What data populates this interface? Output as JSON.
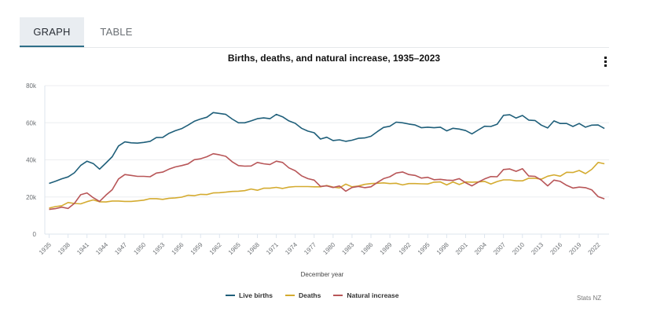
{
  "tabs": [
    {
      "label": "GRAPH",
      "active": true
    },
    {
      "label": "TABLE",
      "active": false
    }
  ],
  "menu_icon": "more-vertical-icon",
  "source": "Stats NZ",
  "chart_data": {
    "type": "line",
    "title": "Births, deaths, and natural increase, 1935–2023",
    "xlabel": "December year",
    "ylabel": "",
    "ylim": [
      0,
      80000
    ],
    "yticks": [
      0,
      20000,
      40000,
      60000,
      80000
    ],
    "ytick_labels": [
      "0",
      "20k",
      "40k",
      "60k",
      "80k"
    ],
    "xlim": [
      1935,
      2023
    ],
    "xticks": [
      1935,
      1938,
      1941,
      1944,
      1947,
      1950,
      1953,
      1956,
      1959,
      1962,
      1965,
      1968,
      1971,
      1974,
      1977,
      1980,
      1983,
      1986,
      1989,
      1992,
      1995,
      1998,
      2001,
      2004,
      2007,
      2010,
      2013,
      2016,
      2019,
      2022
    ],
    "xtick_labels": [
      "1935",
      "1938",
      "1941",
      "1944",
      "1947",
      "1950",
      "1953",
      "1956",
      "1959",
      "1962",
      "1965",
      "1968",
      "1971",
      "1974",
      "1977",
      "1980",
      "1983",
      "1986",
      "1989",
      "1992",
      "1995",
      "1998",
      "2001",
      "2004",
      "2007",
      "2010",
      "2013",
      "2016",
      "2019",
      "2022"
    ],
    "grid": true,
    "legend_position": "bottom",
    "x": [
      1935,
      1936,
      1937,
      1938,
      1939,
      1940,
      1941,
      1942,
      1943,
      1944,
      1945,
      1946,
      1947,
      1948,
      1949,
      1950,
      1951,
      1952,
      1953,
      1954,
      1955,
      1956,
      1957,
      1958,
      1959,
      1960,
      1961,
      1962,
      1963,
      1964,
      1965,
      1966,
      1967,
      1968,
      1969,
      1970,
      1971,
      1972,
      1973,
      1974,
      1975,
      1976,
      1977,
      1978,
      1979,
      1980,
      1981,
      1982,
      1983,
      1984,
      1985,
      1986,
      1987,
      1988,
      1989,
      1990,
      1991,
      1992,
      1993,
      1994,
      1995,
      1996,
      1997,
      1998,
      1999,
      2000,
      2001,
      2002,
      2003,
      2004,
      2005,
      2006,
      2007,
      2008,
      2009,
      2010,
      2011,
      2012,
      2013,
      2014,
      2015,
      2016,
      2017,
      2018,
      2019,
      2020,
      2021,
      2022,
      2023
    ],
    "series": [
      {
        "name": "Live births",
        "color": "#1f5f7a",
        "values": [
          27300,
          28500,
          29800,
          30800,
          33000,
          37000,
          39300,
          38000,
          35000,
          38300,
          41700,
          47500,
          49700,
          49200,
          49000,
          49400,
          50000,
          52000,
          52100,
          54300,
          55700,
          56800,
          58700,
          60800,
          62000,
          63000,
          65500,
          65000,
          64500,
          62000,
          60000,
          60000,
          61000,
          62200,
          62600,
          62200,
          64500,
          63200,
          61000,
          59700,
          57000,
          55500,
          54600,
          51200,
          52200,
          50400,
          50800,
          50000,
          50600,
          51600,
          51800,
          52700,
          55200,
          57500,
          58100,
          60300,
          60000,
          59300,
          58800,
          57300,
          57600,
          57300,
          57600,
          55600,
          57000,
          56600,
          55800,
          54000,
          56100,
          58100,
          58000,
          59200,
          64000,
          64300,
          62500,
          63900,
          61400,
          61200,
          58700,
          57200,
          61000,
          59600,
          59600,
          58000,
          59600,
          57600,
          58700,
          58800,
          56900
        ]
      },
      {
        "name": "Deaths",
        "color": "#d4ab30",
        "values": [
          14000,
          14800,
          15300,
          17000,
          16500,
          16300,
          17500,
          18400,
          17400,
          17300,
          17800,
          17800,
          17600,
          17600,
          17900,
          18300,
          19100,
          19100,
          18700,
          19300,
          19500,
          19900,
          20900,
          20700,
          21400,
          21300,
          22200,
          22300,
          22600,
          23000,
          23100,
          23400,
          24300,
          23600,
          24700,
          24700,
          25200,
          24600,
          25300,
          25600,
          25600,
          25600,
          25500,
          25500,
          26200,
          25300,
          24900,
          26900,
          25500,
          25900,
          26800,
          27200,
          27400,
          27600,
          27200,
          27400,
          26500,
          27200,
          27200,
          27100,
          27000,
          28000,
          28100,
          26500,
          28100,
          26700,
          28100,
          28000,
          28100,
          28400,
          27000,
          28300,
          29200,
          29200,
          28700,
          28700,
          30100,
          30100,
          29600,
          31200,
          31900,
          31200,
          33300,
          33200,
          34300,
          32600,
          34900,
          38600,
          37900
        ]
      },
      {
        "name": "Natural increase",
        "color": "#b85658",
        "values": [
          13300,
          13700,
          14500,
          13800,
          16500,
          21200,
          22200,
          19600,
          17600,
          21000,
          23900,
          29700,
          32100,
          31600,
          31100,
          31100,
          30900,
          32900,
          33400,
          35000,
          36200,
          36900,
          37800,
          40100,
          40600,
          41700,
          43300,
          42700,
          41900,
          39000,
          36900,
          36600,
          36700,
          38600,
          37900,
          37500,
          39300,
          38600,
          35700,
          34100,
          31400,
          29900,
          29100,
          25700,
          26000,
          25100,
          25900,
          23100,
          25100,
          25700,
          25000,
          25500,
          27800,
          29900,
          30900,
          32900,
          33500,
          32100,
          31600,
          30200,
          30600,
          29300,
          29500,
          29100,
          28900,
          29900,
          27700,
          26000,
          28000,
          29700,
          31000,
          30900,
          34800,
          35100,
          33800,
          35200,
          31300,
          31100,
          29100,
          26000,
          29100,
          28400,
          26300,
          24800,
          25300,
          25000,
          23800,
          20200,
          19000
        ]
      }
    ]
  }
}
